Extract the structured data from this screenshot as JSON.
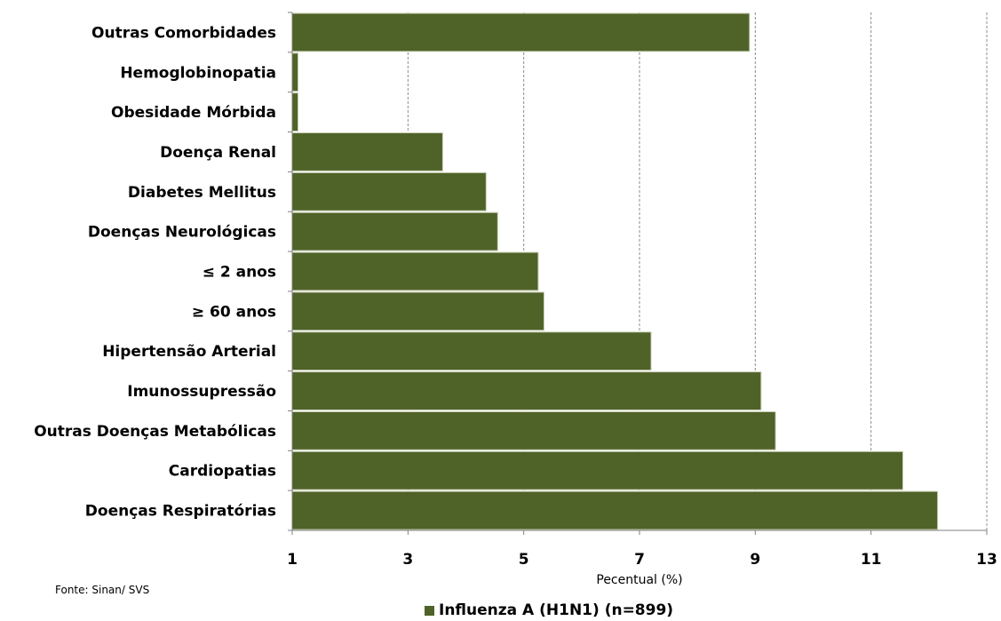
{
  "chart_data": {
    "type": "bar",
    "orientation": "horizontal",
    "categories": [
      "Outras Comorbidades",
      "Hemoglobinopatia",
      "Obesidade Mórbida",
      "Doença Renal",
      "Diabetes Mellitus",
      "Doenças Neurológicas",
      "≤ 2 anos",
      "≥ 60 anos",
      "Hipertensão Arterial",
      "Imunossupressão",
      "Outras Doenças Metabólicas",
      "Cardiopatias",
      "Doenças Respiratórias"
    ],
    "series": [
      {
        "name": "Influenza A (H1N1) (n=899)",
        "color": "#4f6228",
        "values": [
          8.9,
          1.1,
          1.1,
          3.6,
          4.35,
          4.55,
          5.25,
          5.35,
          7.2,
          9.1,
          9.35,
          11.55,
          12.15
        ]
      }
    ],
    "xlabel": "Pecentual (%)",
    "xlim": [
      1,
      13
    ],
    "xticks": [
      1,
      3,
      5,
      7,
      9,
      11,
      13
    ],
    "grid": "vertical dashed",
    "legend_position": "bottom"
  },
  "source": "Fonte: Sinan/ SVS",
  "legend": {
    "label": "Influenza A (H1N1) (n=899)",
    "color": "#4f6228"
  }
}
